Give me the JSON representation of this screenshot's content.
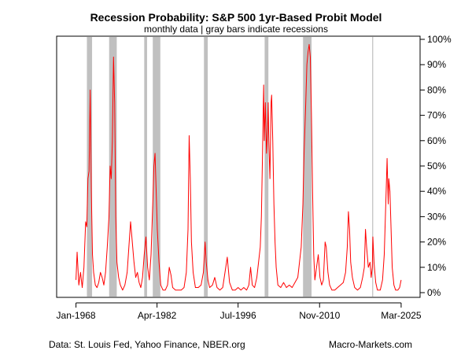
{
  "chart_data": {
    "type": "line",
    "title": "Recession Probability: S&P 500 1yr-Based Probit Model",
    "subtitle": "monthly data | gray bars indicate recessions",
    "xlabel": "",
    "ylabel": "",
    "x_range": [
      1968.0,
      2025.17
    ],
    "xlim": [
      1964.6,
      2028.5
    ],
    "ylim": [
      0,
      100
    ],
    "x_ticks": [
      {
        "label": "Jan-1968",
        "x": 1968.0
      },
      {
        "label": "Apr-1982",
        "x": 1982.25
      },
      {
        "label": "Jul-1996",
        "x": 1996.5
      },
      {
        "label": "Nov-2010",
        "x": 2010.83
      },
      {
        "label": "Mar-2025",
        "x": 2025.17
      }
    ],
    "y_ticks": [
      {
        "label": "0%",
        "value": 0
      },
      {
        "label": "10%",
        "value": 10
      },
      {
        "label": "20%",
        "value": 20
      },
      {
        "label": "30%",
        "value": 30
      },
      {
        "label": "40%",
        "value": 40
      },
      {
        "label": "50%",
        "value": 50
      },
      {
        "label": "60%",
        "value": 60
      },
      {
        "label": "70%",
        "value": 70
      },
      {
        "label": "80%",
        "value": 80
      },
      {
        "label": "90%",
        "value": 90
      },
      {
        "label": "100%",
        "value": 100
      }
    ],
    "recessions": [
      {
        "start": 1969.92,
        "end": 1970.83
      },
      {
        "start": 1973.83,
        "end": 1975.17
      },
      {
        "start": 1980.0,
        "end": 1980.5
      },
      {
        "start": 1981.5,
        "end": 1982.83
      },
      {
        "start": 1990.5,
        "end": 1991.17
      },
      {
        "start": 2001.17,
        "end": 2001.83
      },
      {
        "start": 2007.92,
        "end": 2009.42
      },
      {
        "start": 2020.08,
        "end": 2020.25
      }
    ],
    "series": [
      {
        "color": "#ff0000",
        "points": [
          [
            1968.0,
            5
          ],
          [
            1968.2,
            16
          ],
          [
            1968.5,
            3
          ],
          [
            1968.8,
            8
          ],
          [
            1969.1,
            2
          ],
          [
            1969.4,
            10
          ],
          [
            1969.7,
            28
          ],
          [
            1969.9,
            26
          ],
          [
            1970.1,
            45
          ],
          [
            1970.3,
            48
          ],
          [
            1970.5,
            80
          ],
          [
            1970.7,
            40
          ],
          [
            1970.9,
            15
          ],
          [
            1971.1,
            8
          ],
          [
            1971.4,
            3
          ],
          [
            1971.7,
            2
          ],
          [
            1972.0,
            4
          ],
          [
            1972.3,
            8
          ],
          [
            1972.6,
            6
          ],
          [
            1972.9,
            3
          ],
          [
            1973.2,
            8
          ],
          [
            1973.5,
            18
          ],
          [
            1973.8,
            30
          ],
          [
            1974.0,
            50
          ],
          [
            1974.2,
            45
          ],
          [
            1974.4,
            60
          ],
          [
            1974.6,
            93
          ],
          [
            1974.8,
            75
          ],
          [
            1975.0,
            30
          ],
          [
            1975.2,
            12
          ],
          [
            1975.5,
            6
          ],
          [
            1975.8,
            3
          ],
          [
            1976.2,
            1
          ],
          [
            1976.6,
            3
          ],
          [
            1977.0,
            8
          ],
          [
            1977.3,
            18
          ],
          [
            1977.6,
            28
          ],
          [
            1977.9,
            20
          ],
          [
            1978.2,
            12
          ],
          [
            1978.5,
            6
          ],
          [
            1978.8,
            8
          ],
          [
            1979.1,
            4
          ],
          [
            1979.4,
            2
          ],
          [
            1979.7,
            6
          ],
          [
            1980.0,
            15
          ],
          [
            1980.3,
            22
          ],
          [
            1980.6,
            10
          ],
          [
            1980.9,
            5
          ],
          [
            1981.2,
            15
          ],
          [
            1981.5,
            35
          ],
          [
            1981.7,
            50
          ],
          [
            1981.9,
            55
          ],
          [
            1982.1,
            40
          ],
          [
            1982.3,
            25
          ],
          [
            1982.6,
            12
          ],
          [
            1982.9,
            3
          ],
          [
            1983.3,
            1
          ],
          [
            1983.7,
            1
          ],
          [
            1984.1,
            3
          ],
          [
            1984.4,
            10
          ],
          [
            1984.7,
            7
          ],
          [
            1985.0,
            2
          ],
          [
            1985.5,
            1
          ],
          [
            1986.0,
            1
          ],
          [
            1986.5,
            1
          ],
          [
            1987.0,
            2
          ],
          [
            1987.4,
            8
          ],
          [
            1987.7,
            25
          ],
          [
            1987.9,
            62
          ],
          [
            1988.1,
            45
          ],
          [
            1988.3,
            20
          ],
          [
            1988.6,
            8
          ],
          [
            1989.0,
            2
          ],
          [
            1989.5,
            2
          ],
          [
            1990.0,
            3
          ],
          [
            1990.4,
            8
          ],
          [
            1990.7,
            20
          ],
          [
            1990.9,
            12
          ],
          [
            1991.2,
            5
          ],
          [
            1991.5,
            2
          ],
          [
            1992.0,
            3
          ],
          [
            1992.4,
            6
          ],
          [
            1992.8,
            2
          ],
          [
            1993.3,
            1
          ],
          [
            1993.8,
            2
          ],
          [
            1994.2,
            8
          ],
          [
            1994.6,
            14
          ],
          [
            1995.0,
            4
          ],
          [
            1995.5,
            1
          ],
          [
            1996.0,
            1
          ],
          [
            1996.5,
            2
          ],
          [
            1997.0,
            1
          ],
          [
            1997.5,
            2
          ],
          [
            1998.0,
            1
          ],
          [
            1998.4,
            3
          ],
          [
            1998.7,
            10
          ],
          [
            1999.0,
            3
          ],
          [
            1999.4,
            2
          ],
          [
            1999.8,
            6
          ],
          [
            2000.1,
            12
          ],
          [
            2000.4,
            18
          ],
          [
            2000.6,
            30
          ],
          [
            2000.8,
            55
          ],
          [
            2000.9,
            70
          ],
          [
            2001.0,
            82
          ],
          [
            2001.1,
            60
          ],
          [
            2001.3,
            75
          ],
          [
            2001.5,
            55
          ],
          [
            2001.7,
            65
          ],
          [
            2001.8,
            75
          ],
          [
            2001.9,
            60
          ],
          [
            2002.1,
            45
          ],
          [
            2002.3,
            75
          ],
          [
            2002.4,
            78
          ],
          [
            2002.6,
            60
          ],
          [
            2002.8,
            35
          ],
          [
            2003.0,
            20
          ],
          [
            2003.2,
            10
          ],
          [
            2003.5,
            3
          ],
          [
            2004.0,
            2
          ],
          [
            2004.5,
            4
          ],
          [
            2005.0,
            2
          ],
          [
            2005.5,
            3
          ],
          [
            2006.0,
            2
          ],
          [
            2006.5,
            4
          ],
          [
            2007.0,
            6
          ],
          [
            2007.3,
            12
          ],
          [
            2007.6,
            18
          ],
          [
            2007.9,
            35
          ],
          [
            2008.1,
            55
          ],
          [
            2008.4,
            75
          ],
          [
            2008.6,
            90
          ],
          [
            2008.8,
            95
          ],
          [
            2009.0,
            98
          ],
          [
            2009.2,
            93
          ],
          [
            2009.4,
            70
          ],
          [
            2009.6,
            40
          ],
          [
            2009.8,
            15
          ],
          [
            2010.0,
            5
          ],
          [
            2010.3,
            10
          ],
          [
            2010.6,
            15
          ],
          [
            2010.9,
            6
          ],
          [
            2011.2,
            3
          ],
          [
            2011.5,
            5
          ],
          [
            2011.8,
            20
          ],
          [
            2012.0,
            18
          ],
          [
            2012.3,
            8
          ],
          [
            2012.6,
            3
          ],
          [
            2013.0,
            1
          ],
          [
            2013.5,
            1
          ],
          [
            2014.0,
            2
          ],
          [
            2014.5,
            3
          ],
          [
            2015.0,
            4
          ],
          [
            2015.4,
            8
          ],
          [
            2015.7,
            18
          ],
          [
            2015.9,
            32
          ],
          [
            2016.1,
            25
          ],
          [
            2016.3,
            12
          ],
          [
            2016.6,
            6
          ],
          [
            2017.0,
            2
          ],
          [
            2017.5,
            1
          ],
          [
            2018.0,
            2
          ],
          [
            2018.4,
            6
          ],
          [
            2018.7,
            10
          ],
          [
            2018.9,
            25
          ],
          [
            2019.1,
            18
          ],
          [
            2019.4,
            10
          ],
          [
            2019.7,
            12
          ],
          [
            2019.9,
            6
          ],
          [
            2020.1,
            10
          ],
          [
            2020.2,
            22
          ],
          [
            2020.4,
            12
          ],
          [
            2020.7,
            4
          ],
          [
            2021.0,
            1
          ],
          [
            2021.5,
            1
          ],
          [
            2021.9,
            5
          ],
          [
            2022.2,
            15
          ],
          [
            2022.4,
            30
          ],
          [
            2022.6,
            45
          ],
          [
            2022.7,
            53
          ],
          [
            2022.9,
            35
          ],
          [
            2023.0,
            45
          ],
          [
            2023.2,
            40
          ],
          [
            2023.4,
            25
          ],
          [
            2023.6,
            10
          ],
          [
            2023.9,
            3
          ],
          [
            2024.2,
            1
          ],
          [
            2024.6,
            1
          ],
          [
            2024.9,
            2
          ],
          [
            2025.17,
            5
          ]
        ]
      }
    ]
  },
  "footer": {
    "source": "Data: St. Louis Fed, Yahoo Finance, NBER.org",
    "brand": "Macro-Markets.com"
  }
}
